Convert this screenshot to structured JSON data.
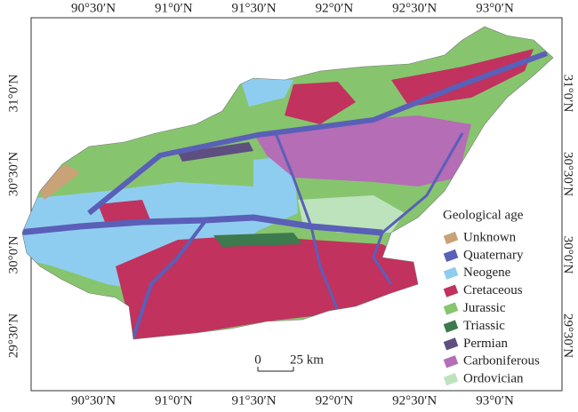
{
  "map": {
    "top_labels": [
      "90°30′N",
      "91°0′N",
      "91°30′N",
      "92°0′N",
      "92°30′N",
      "93°0′N"
    ],
    "bottom_labels": [
      "90°30′N",
      "91°0′N",
      "91°30′N",
      "92°0′N",
      "92°30′N",
      "93°0′N"
    ],
    "left_labels": [
      "31°0′N",
      "30°30′N",
      "30°0′N",
      "29°30′N"
    ],
    "right_labels": [
      "31°0′N",
      "30°30′N",
      "30°0′N",
      "29°30′N"
    ],
    "legend": {
      "title": "Geological age",
      "items": [
        {
          "name": "Unknown",
          "color": "#c9a277"
        },
        {
          "name": "Quaternary",
          "color": "#5a5fb8"
        },
        {
          "name": "Neogene",
          "color": "#8fcdf0"
        },
        {
          "name": "Cretaceous",
          "color": "#c1325e"
        },
        {
          "name": "Jurassic",
          "color": "#86c56e"
        },
        {
          "name": "Triassic",
          "color": "#3d7a4d"
        },
        {
          "name": "Permian",
          "color": "#5e4f80"
        },
        {
          "name": "Carboniferous",
          "color": "#b56db6"
        },
        {
          "name": "Ordovician",
          "color": "#bde3bd"
        }
      ]
    },
    "scale_bar": {
      "start": "0",
      "end": "25 km"
    }
  }
}
